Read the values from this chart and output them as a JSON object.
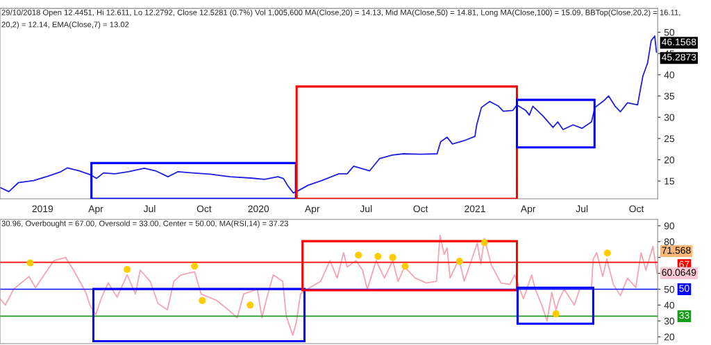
{
  "chart_data": [
    {
      "type": "line",
      "title": "29/10/2018 Open 12.4451, Hi 12.611, Lo 12.2792, Close 12.5281 (0.7%) Vol 1,005,600 MA(Close,20) = 14.13, Mid MA(Close,50) = 14.81, Long MA(Close,100) = 15.09, BBTop(Close,20,2) = 16.11,",
      "subtitle": "20,2) = 12.14, EMA(Close,7) = 13.02",
      "xlim": [
        "2018-10-21",
        "2021-11-06"
      ],
      "ylim": [
        10.8,
        55.6
      ],
      "yticks": [
        15,
        20,
        25,
        30,
        35,
        40,
        45,
        50
      ],
      "xticks": [
        {
          "value": "2019-01-01",
          "label": "2019"
        },
        {
          "value": "2019-04-01",
          "label": "Apr"
        },
        {
          "value": "2019-07-01",
          "label": "Jul"
        },
        {
          "value": "2019-10-01",
          "label": "Oct"
        },
        {
          "value": "2020-01-01",
          "label": "2020"
        },
        {
          "value": "2020-04-01",
          "label": "Apr"
        },
        {
          "value": "2020-07-01",
          "label": "Jul"
        },
        {
          "value": "2020-10-01",
          "label": "Oct"
        },
        {
          "value": "2021-01-01",
          "label": "2021"
        },
        {
          "value": "2021-04-01",
          "label": "Apr"
        },
        {
          "value": "2021-07-01",
          "label": "Jul"
        },
        {
          "value": "2021-10-01",
          "label": "Oct"
        }
      ],
      "grid": false,
      "series": [
        {
          "color": "#1f1fe0",
          "x": [
            "2018-10-21",
            "2018-11-05",
            "2018-11-21",
            "2018-12-17",
            "2019-01-09",
            "2019-02-01",
            "2019-02-12",
            "2019-03-04",
            "2019-03-24",
            "2019-04-02",
            "2019-04-14",
            "2019-05-03",
            "2019-05-26",
            "2019-06-22",
            "2019-07-11",
            "2019-08-01",
            "2019-08-18",
            "2019-09-12",
            "2019-10-11",
            "2019-11-14",
            "2019-12-19",
            "2020-01-11",
            "2020-02-03",
            "2020-02-12",
            "2020-02-20",
            "2020-02-29",
            "2020-03-08",
            "2020-03-25",
            "2020-04-17",
            "2020-05-16",
            "2020-05-30",
            "2020-06-10",
            "2020-07-07",
            "2020-07-24",
            "2020-08-14",
            "2020-09-02",
            "2020-10-01",
            "2020-10-29",
            "2020-11-04",
            "2020-11-15",
            "2020-11-24",
            "2020-12-14",
            "2021-01-01",
            "2021-01-04",
            "2021-01-12",
            "2021-01-26",
            "2021-02-10",
            "2021-02-18",
            "2021-03-06",
            "2021-03-13",
            "2021-03-28",
            "2021-04-03",
            "2021-04-09",
            "2021-04-26",
            "2021-05-13",
            "2021-05-21",
            "2021-05-30",
            "2021-06-16",
            "2021-07-01",
            "2021-07-17",
            "2021-07-23",
            "2021-08-07",
            "2021-08-15",
            "2021-08-26",
            "2021-09-04",
            "2021-09-16",
            "2021-10-03",
            "2021-10-12",
            "2021-10-20",
            "2021-10-26",
            "2021-11-01",
            "2021-11-04"
          ],
          "values": [
            13.5,
            12.5,
            14.6,
            15.1,
            16.1,
            17.2,
            18.1,
            17.4,
            16.4,
            15.6,
            16.9,
            16.7,
            17.2,
            18.0,
            17.4,
            16.0,
            17.2,
            16.9,
            16.6,
            16.0,
            15.7,
            15.4,
            16.0,
            15.6,
            13.8,
            12.2,
            12.7,
            14.0,
            15.1,
            16.7,
            16.7,
            18.5,
            17.4,
            20.3,
            21.1,
            21.4,
            21.3,
            21.4,
            24.2,
            25.3,
            23.7,
            24.5,
            25.5,
            28.2,
            32.3,
            33.7,
            32.6,
            31.4,
            31.6,
            32.9,
            31.6,
            30.5,
            32.6,
            30.3,
            27.6,
            28.9,
            27.1,
            28.2,
            27.4,
            28.9,
            32.3,
            33.9,
            35.0,
            32.6,
            31.3,
            33.4,
            32.9,
            39.7,
            42.8,
            48.0,
            49.1,
            45.3
          ]
        }
      ],
      "annotations": [
        {
          "text": "46.1568",
          "x": "2021-11-06",
          "y": 46.1568
        },
        {
          "text": "45.2873",
          "x": "2021-11-06",
          "y": 45.2873
        }
      ]
    },
    {
      "type": "line",
      "title": "30.96, Overbought = 67.00, Oversold = 33.00, Center = 50.00, MA(RSI,14) = 37.23",
      "xlim": [
        "2018-10-21",
        "2021-11-06"
      ],
      "ylim": [
        15.7,
        94
      ],
      "yticks": [
        20,
        30,
        40,
        50,
        {
          "value": 60,
          "label": null
        },
        {
          "value": 70,
          "label": null
        },
        80,
        90
      ],
      "xticks": [
        {
          "value": "2019-01-01",
          "label": null
        },
        {
          "value": "2019-04-01",
          "label": null
        },
        {
          "value": "2019-07-01",
          "label": null
        },
        {
          "value": "2019-10-01",
          "label": null
        },
        {
          "value": "2020-01-01",
          "label": null
        },
        {
          "value": "2020-04-01",
          "label": null
        },
        {
          "value": "2020-07-01",
          "label": null
        },
        {
          "value": "2020-10-01",
          "label": null
        },
        {
          "value": "2021-01-01",
          "label": null
        },
        {
          "value": "2021-04-01",
          "label": null
        },
        {
          "value": "2021-07-01",
          "label": null
        },
        {
          "value": "2021-10-01",
          "label": null
        }
      ],
      "tick_labels": "y",
      "grid": false,
      "series": [
        {
          "color": "#f5a3b5",
          "x": [
            "2018-10-21",
            "2018-10-30",
            "2018-11-13",
            "2018-12-09",
            "2018-12-20",
            "2019-01-20",
            "2019-02-09",
            "2019-02-24",
            "2019-03-15",
            "2019-03-22",
            "2019-04-01",
            "2019-04-10",
            "2019-04-22",
            "2019-05-07",
            "2019-05-24",
            "2019-06-07",
            "2019-06-15",
            "2019-07-02",
            "2019-07-15",
            "2019-07-31",
            "2019-08-11",
            "2019-08-23",
            "2019-09-15",
            "2019-09-26",
            "2019-10-22",
            "2019-11-11",
            "2019-11-26",
            "2019-12-07",
            "2019-12-30",
            "2020-01-07",
            "2020-01-14",
            "2020-01-26",
            "2020-02-11",
            "2020-02-17",
            "2020-02-28",
            "2020-03-05",
            "2020-03-12",
            "2020-03-28",
            "2020-04-15",
            "2020-05-01",
            "2020-05-13",
            "2020-05-24",
            "2020-05-30",
            "2020-06-14",
            "2020-06-25",
            "2020-07-03",
            "2020-07-18",
            "2020-08-01",
            "2020-08-15",
            "2020-08-24",
            "2020-09-04",
            "2020-09-22",
            "2020-10-11",
            "2020-10-28",
            "2020-11-03",
            "2020-11-10",
            "2020-11-15",
            "2020-11-20",
            "2020-12-05",
            "2020-12-14",
            "2021-01-05",
            "2021-01-11",
            "2021-01-17",
            "2021-01-29",
            "2021-02-14",
            "2021-03-01",
            "2021-03-09",
            "2021-03-24",
            "2021-04-07",
            "2021-04-13",
            "2021-04-24",
            "2021-05-03",
            "2021-05-11",
            "2021-05-18",
            "2021-05-24",
            "2021-06-01",
            "2021-06-18",
            "2021-06-27",
            "2021-07-17",
            "2021-07-20",
            "2021-07-26",
            "2021-08-05",
            "2021-08-12",
            "2021-08-23",
            "2021-09-04",
            "2021-09-16",
            "2021-09-30",
            "2021-10-09",
            "2021-10-17",
            "2021-10-29",
            "2021-11-05"
          ],
          "values": [
            44,
            40,
            50,
            58,
            51,
            68,
            70,
            61,
            48,
            40,
            34,
            44,
            54,
            45,
            59,
            47,
            62,
            55,
            41,
            37,
            55,
            59,
            61,
            47,
            43,
            37,
            32,
            47,
            50,
            32,
            43,
            59,
            55,
            33,
            21,
            29,
            47,
            51,
            55,
            68,
            57,
            73,
            64,
            68,
            62,
            50,
            68,
            57,
            68,
            55,
            64,
            57,
            54,
            55,
            84,
            72,
            76,
            57,
            69,
            55,
            79,
            66,
            82,
            65,
            54,
            53,
            59,
            44,
            59,
            50,
            40,
            30,
            48,
            37,
            44,
            50,
            40,
            50,
            51,
            69,
            73,
            58,
            69,
            53,
            46,
            57,
            51,
            73,
            62,
            77,
            60
          ]
        },
        {
          "type": "scatter",
          "color": "#ffcc00",
          "marker": "circle",
          "x": [
            "2018-12-11",
            "2019-05-24",
            "2019-09-15",
            "2019-09-28",
            "2019-12-18",
            "2020-06-18",
            "2020-07-21",
            "2020-08-15",
            "2020-09-05",
            "2020-12-06",
            "2021-01-17",
            "2021-05-18",
            "2021-08-13"
          ],
          "values": [
            66.6,
            62.5,
            64.6,
            42.8,
            40.0,
            71.5,
            70.7,
            70.0,
            64.5,
            67.6,
            79.4,
            34.5,
            72.8
          ]
        }
      ],
      "ref_lines": [
        {
          "axis": "y",
          "value": 67,
          "label": "67",
          "color": "#ff0000"
        },
        {
          "axis": "y",
          "value": 50,
          "label": "50",
          "color": "#0000ff"
        },
        {
          "axis": "y",
          "value": 33,
          "label": "33",
          "color": "#1a9a1a"
        }
      ],
      "annotations": [
        {
          "text": "71.568",
          "x": "2021-11-06",
          "y": 71.568
        },
        {
          "text": "60.0649",
          "x": "2021-11-06",
          "y": 60.0649
        }
      ]
    }
  ]
}
